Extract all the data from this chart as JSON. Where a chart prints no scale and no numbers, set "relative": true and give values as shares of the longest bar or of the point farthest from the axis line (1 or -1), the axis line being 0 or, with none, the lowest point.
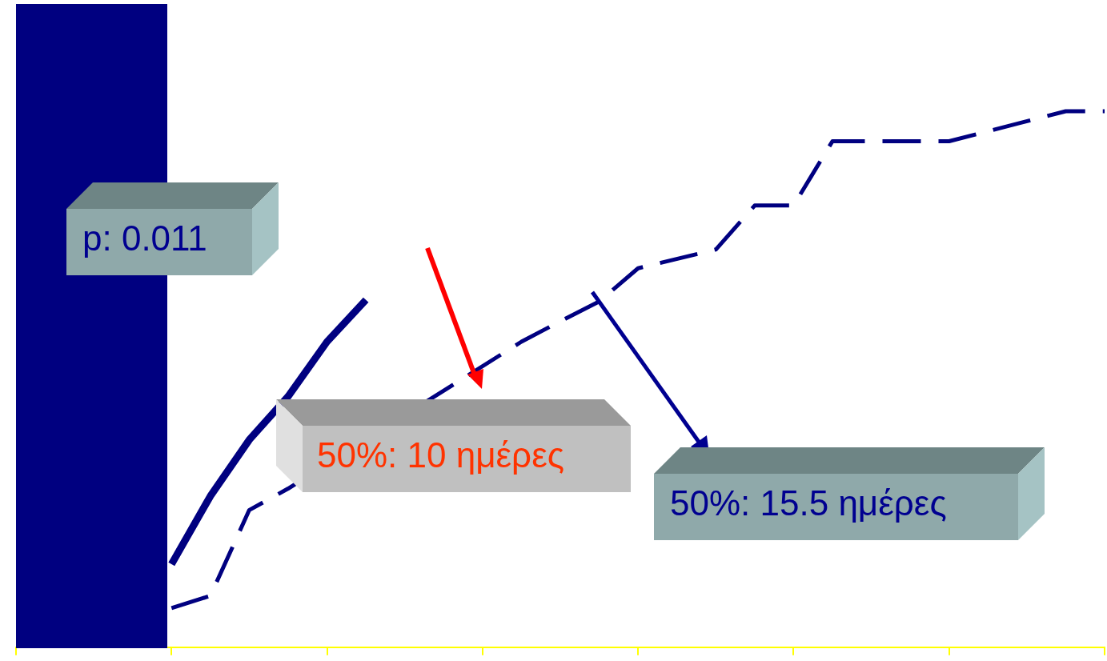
{
  "chart_data": {
    "type": "line",
    "relative": true,
    "legend": false,
    "grid": false,
    "categories": [
      null,
      null,
      null,
      null,
      null,
      null,
      null,
      null,
      null,
      null,
      null,
      null,
      null,
      null,
      null,
      null,
      null,
      null,
      null,
      null,
      null,
      null,
      null,
      null,
      null,
      null,
      null,
      null,
      null
    ],
    "series": [
      {
        "color": "#000080",
        "line_style": "dashed",
        "values": [
          null,
          null,
          null,
          null,
          0.073,
          0.096,
          0.256,
          0.296,
          null,
          null,
          null,
          null,
          null,
          0.57,
          0.608,
          0.645,
          0.707,
          null,
          0.742,
          0.824,
          0.824,
          0.944,
          null,
          null,
          0.944,
          null,
          null,
          1,
          1
        ]
      },
      {
        "color": "#000080",
        "line_style": "solid",
        "values": [
          null,
          null,
          null,
          null,
          0.155,
          0.282,
          0.387,
          0.468,
          0.57,
          0.648,
          null,
          null,
          null,
          null,
          null,
          null,
          null,
          null,
          null,
          null,
          null,
          null,
          null,
          null,
          null,
          null,
          null,
          null,
          null
        ]
      }
    ],
    "annotations": [
      "p: 0.011",
      "50%: 10 ημέρες",
      "50%: 15.5 ημέρες"
    ]
  }
}
